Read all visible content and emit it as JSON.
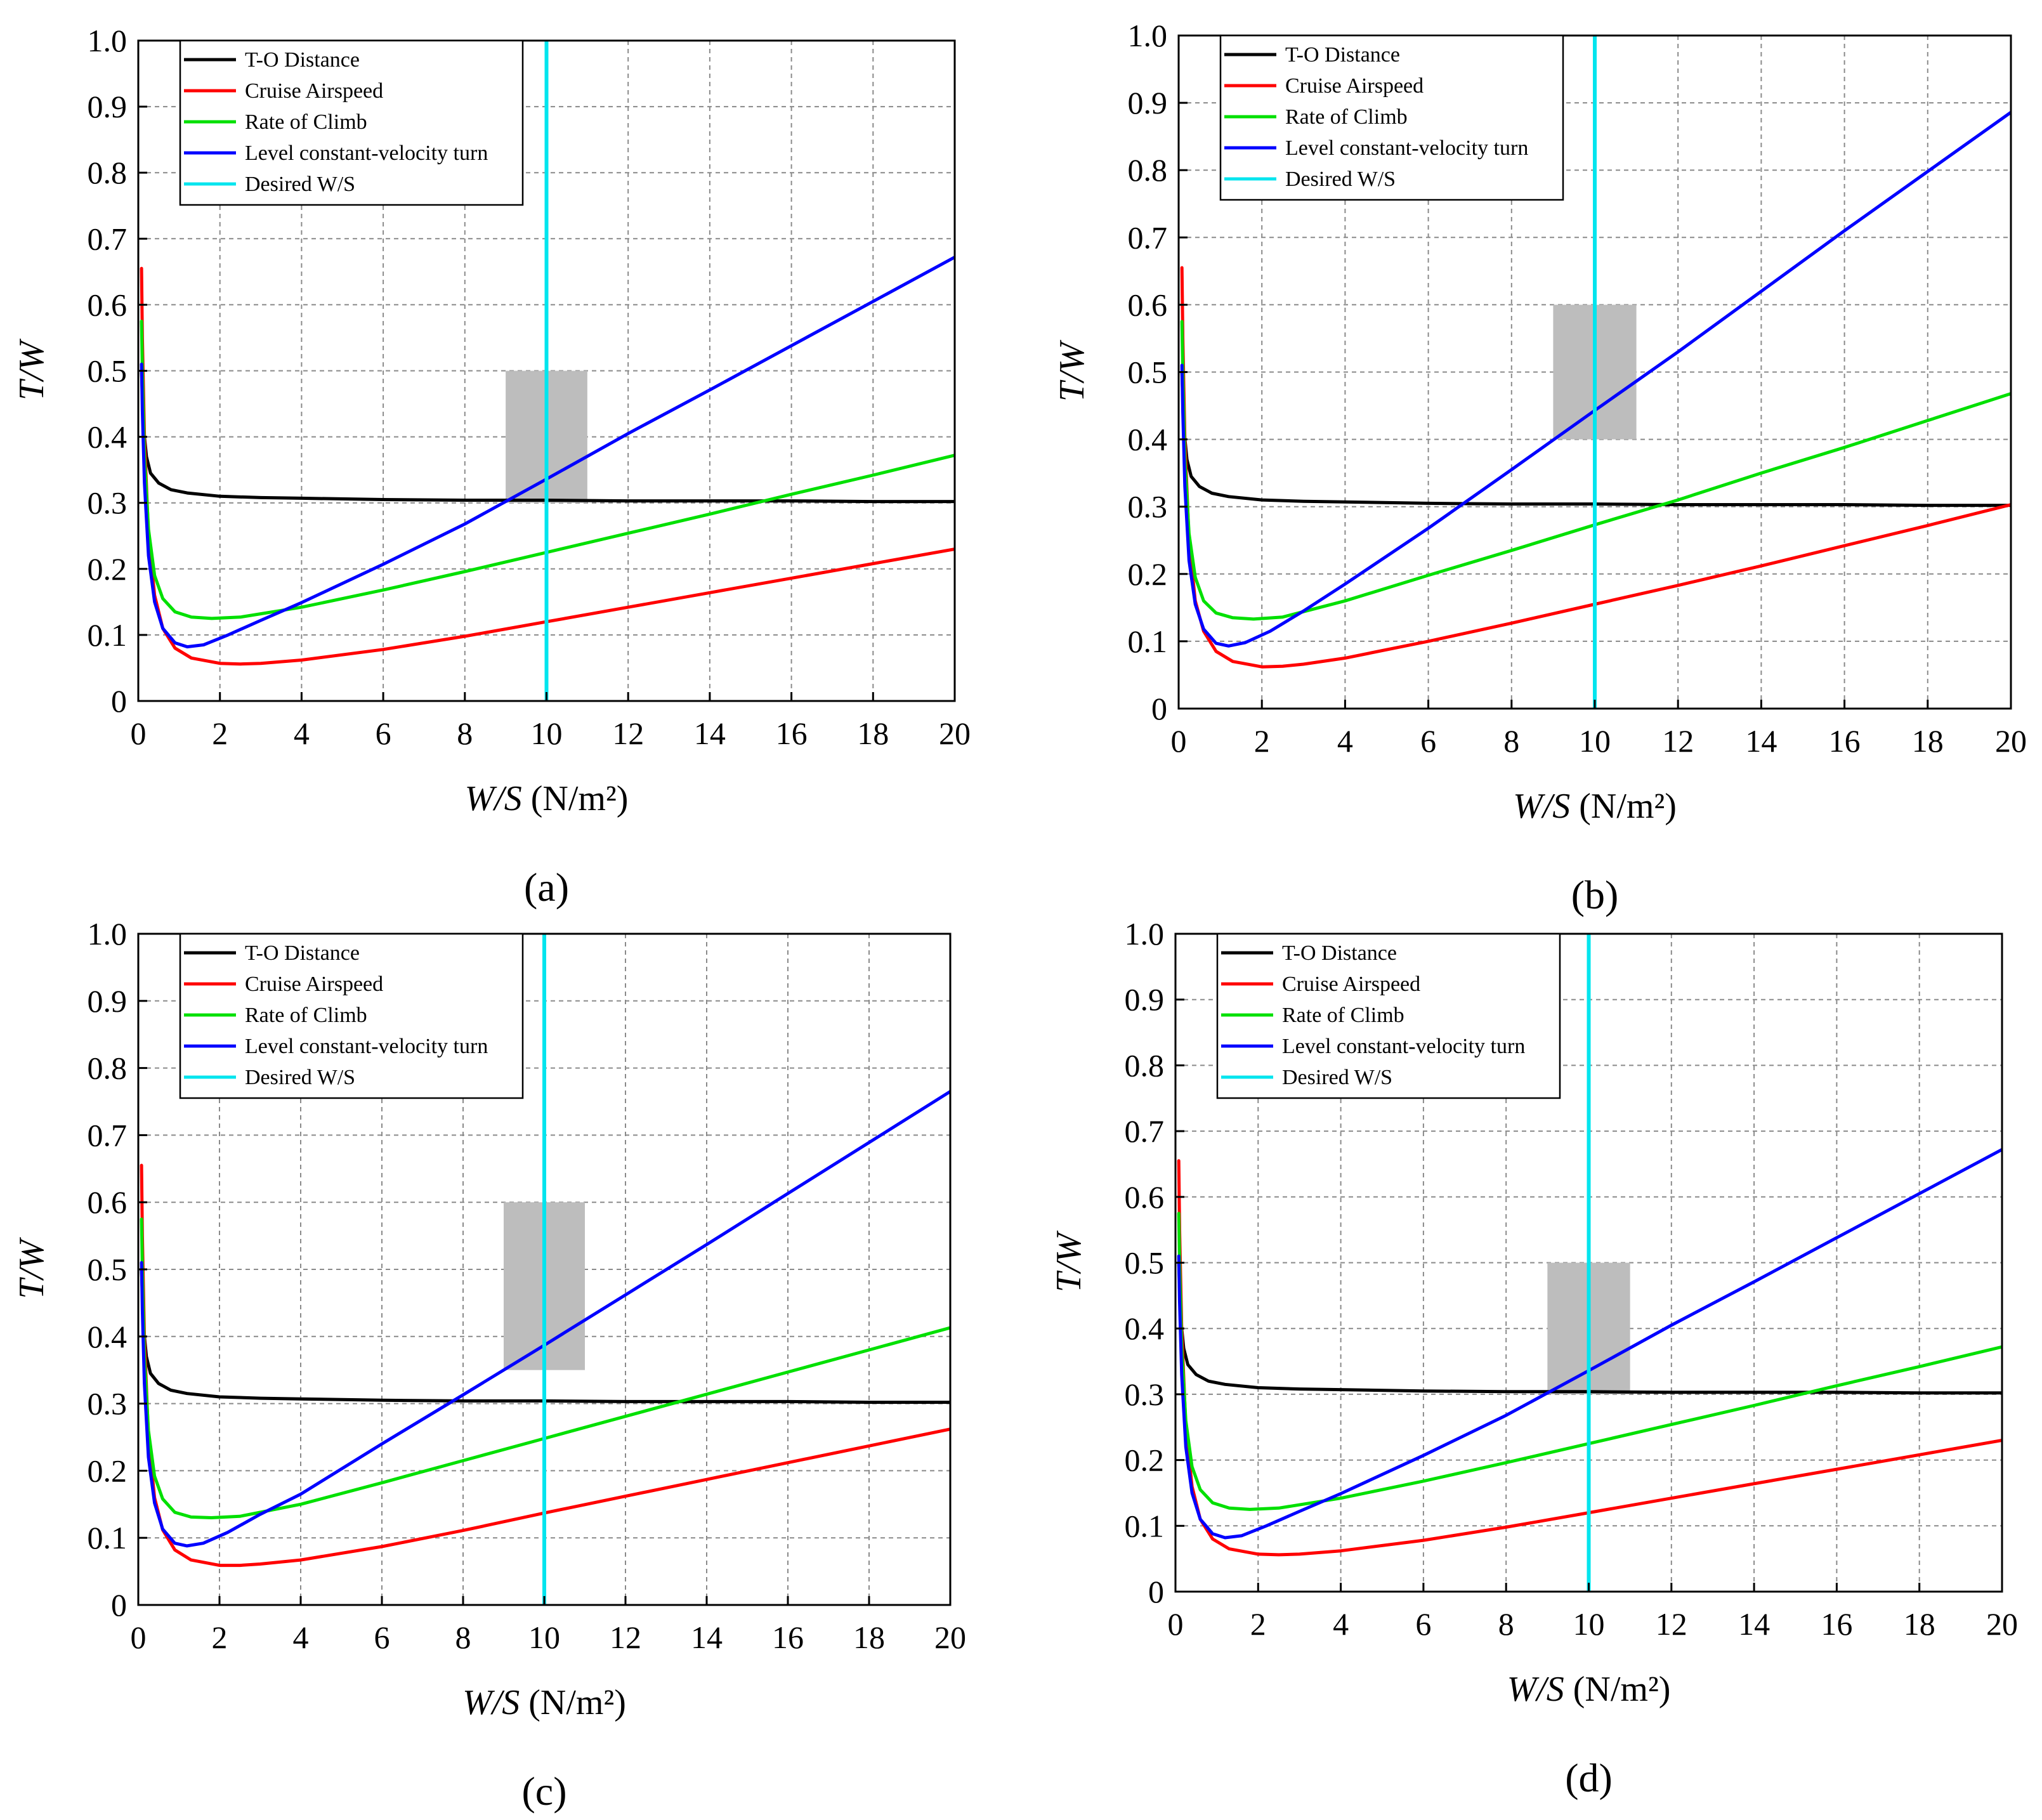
{
  "chart_data": [
    {
      "panel": "a",
      "type": "line",
      "caption": "(a)",
      "xlabel_italic": "W/S",
      "xlabel_units": " (N/m²)",
      "ylabel": "T/W",
      "xlim": [
        0,
        20
      ],
      "ylim": [
        0,
        1.0
      ],
      "x_ticks": [
        "0",
        "2",
        "4",
        "6",
        "8",
        "10",
        "12",
        "14",
        "16",
        "18",
        "20"
      ],
      "y_ticks": [
        "0",
        "0.1",
        "0.2",
        "0.3",
        "0.4",
        "0.5",
        "0.6",
        "0.7",
        "0.8",
        "0.9",
        "1.0"
      ],
      "grid": true,
      "legend_position": "top-left",
      "feasible_region": {
        "x": [
          9,
          11
        ],
        "y": [
          0.3,
          0.5
        ],
        "color": "#bdbdbd"
      },
      "desired_ws": 10,
      "series": [
        {
          "name": "T-O Distance",
          "color": "#000000",
          "x": [
            0.08,
            0.12,
            0.2,
            0.3,
            0.5,
            0.8,
            1.2,
            2,
            3,
            4,
            6,
            8,
            10,
            12,
            14,
            16,
            18,
            20
          ],
          "y": [
            0.5,
            0.42,
            0.37,
            0.345,
            0.33,
            0.32,
            0.315,
            0.31,
            0.308,
            0.307,
            0.305,
            0.304,
            0.304,
            0.303,
            0.303,
            0.303,
            0.302,
            0.302
          ]
        },
        {
          "name": "Cruise Airspeed",
          "color": "#ff0000",
          "x": [
            0.08,
            0.1,
            0.15,
            0.25,
            0.4,
            0.6,
            0.9,
            1.3,
            2,
            2.5,
            3,
            4,
            6,
            8,
            10,
            12,
            14,
            16,
            18,
            20
          ],
          "y": [
            0.655,
            0.55,
            0.4,
            0.25,
            0.16,
            0.11,
            0.08,
            0.065,
            0.057,
            0.056,
            0.057,
            0.062,
            0.078,
            0.098,
            0.12,
            0.142,
            0.164,
            0.186,
            0.208,
            0.23
          ]
        },
        {
          "name": "Rate of Climb",
          "color": "#00e000",
          "x": [
            0.08,
            0.1,
            0.15,
            0.25,
            0.4,
            0.6,
            0.9,
            1.3,
            1.8,
            2.5,
            4,
            6,
            8,
            10,
            12,
            14,
            16,
            18,
            20
          ],
          "y": [
            0.575,
            0.5,
            0.37,
            0.26,
            0.19,
            0.155,
            0.135,
            0.127,
            0.125,
            0.127,
            0.142,
            0.168,
            0.196,
            0.225,
            0.254,
            0.283,
            0.313,
            0.342,
            0.372
          ]
        },
        {
          "name": "Level constant-velocity turn",
          "color": "#0000ff",
          "x": [
            0.08,
            0.1,
            0.15,
            0.25,
            0.4,
            0.6,
            0.9,
            1.2,
            1.6,
            2.2,
            3,
            4,
            6,
            8,
            10,
            12,
            14,
            16,
            18,
            20
          ],
          "y": [
            0.51,
            0.44,
            0.33,
            0.22,
            0.15,
            0.11,
            0.088,
            0.082,
            0.085,
            0.1,
            0.122,
            0.149,
            0.207,
            0.268,
            0.336,
            0.405,
            0.471,
            0.538,
            0.605,
            0.672
          ]
        }
      ],
      "legend_desired_label": "Desired W/S",
      "desired_color": "#00e5ee"
    },
    {
      "panel": "b",
      "type": "line",
      "caption": "(b)",
      "xlabel_italic": "W/S",
      "xlabel_units": " (N/m²)",
      "ylabel": "T/W",
      "xlim": [
        0,
        20
      ],
      "ylim": [
        0,
        1.0
      ],
      "x_ticks": [
        "0",
        "2",
        "4",
        "6",
        "8",
        "10",
        "12",
        "14",
        "16",
        "18",
        "20"
      ],
      "y_ticks": [
        "0",
        "0.1",
        "0.2",
        "0.3",
        "0.4",
        "0.5",
        "0.6",
        "0.7",
        "0.8",
        "0.9",
        "1.0"
      ],
      "grid": true,
      "legend_position": "top-left",
      "feasible_region": {
        "x": [
          9,
          11
        ],
        "y": [
          0.4,
          0.6
        ],
        "color": "#bdbdbd"
      },
      "desired_ws": 10,
      "series": [
        {
          "name": "T-O Distance",
          "color": "#000000",
          "x": [
            0.08,
            0.12,
            0.2,
            0.3,
            0.5,
            0.8,
            1.2,
            2,
            3,
            4,
            6,
            8,
            10,
            12,
            14,
            16,
            18,
            20
          ],
          "y": [
            0.5,
            0.42,
            0.37,
            0.345,
            0.33,
            0.32,
            0.315,
            0.31,
            0.308,
            0.307,
            0.305,
            0.304,
            0.304,
            0.303,
            0.303,
            0.303,
            0.302,
            0.302
          ]
        },
        {
          "name": "Cruise Airspeed",
          "color": "#ff0000",
          "x": [
            0.08,
            0.1,
            0.15,
            0.25,
            0.4,
            0.6,
            0.9,
            1.3,
            2,
            2.5,
            3,
            4,
            6,
            8,
            10,
            12,
            14,
            16,
            18,
            20
          ],
          "y": [
            0.655,
            0.55,
            0.4,
            0.25,
            0.16,
            0.115,
            0.085,
            0.07,
            0.062,
            0.063,
            0.066,
            0.075,
            0.1,
            0.127,
            0.155,
            0.183,
            0.212,
            0.242,
            0.272,
            0.303
          ]
        },
        {
          "name": "Rate of Climb",
          "color": "#00e000",
          "x": [
            0.08,
            0.1,
            0.15,
            0.25,
            0.4,
            0.6,
            0.9,
            1.3,
            1.8,
            2.5,
            4,
            6,
            8,
            10,
            12,
            14,
            16,
            18,
            20
          ],
          "y": [
            0.575,
            0.5,
            0.37,
            0.26,
            0.195,
            0.16,
            0.142,
            0.135,
            0.133,
            0.136,
            0.16,
            0.198,
            0.235,
            0.273,
            0.31,
            0.35,
            0.388,
            0.428,
            0.468
          ]
        },
        {
          "name": "Level constant-velocity turn",
          "color": "#0000ff",
          "x": [
            0.08,
            0.1,
            0.15,
            0.25,
            0.4,
            0.6,
            0.9,
            1.2,
            1.6,
            2.2,
            3,
            4,
            6,
            8,
            10,
            12,
            14,
            16,
            18,
            20
          ],
          "y": [
            0.51,
            0.44,
            0.33,
            0.22,
            0.155,
            0.118,
            0.097,
            0.093,
            0.098,
            0.115,
            0.145,
            0.185,
            0.268,
            0.355,
            0.443,
            0.53,
            0.62,
            0.71,
            0.798,
            0.886
          ]
        }
      ],
      "legend_desired_label": "Desired W/S",
      "desired_color": "#00e5ee"
    },
    {
      "panel": "c",
      "type": "line",
      "caption": "(c)",
      "xlabel_italic": "W/S",
      "xlabel_units": " (N/m²)",
      "ylabel": "T/W",
      "xlim": [
        0,
        20
      ],
      "ylim": [
        0,
        1.0
      ],
      "x_ticks": [
        "0",
        "2",
        "4",
        "6",
        "8",
        "10",
        "12",
        "14",
        "16",
        "18",
        "20"
      ],
      "y_ticks": [
        "0",
        "0.1",
        "0.2",
        "0.3",
        "0.4",
        "0.5",
        "0.6",
        "0.7",
        "0.8",
        "0.9",
        "1.0"
      ],
      "grid": true,
      "legend_position": "top-left",
      "feasible_region": {
        "x": [
          9,
          11
        ],
        "y": [
          0.35,
          0.6
        ],
        "color": "#bdbdbd"
      },
      "desired_ws": 10,
      "series": [
        {
          "name": "T-O Distance",
          "color": "#000000",
          "x": [
            0.08,
            0.12,
            0.2,
            0.3,
            0.5,
            0.8,
            1.2,
            2,
            3,
            4,
            6,
            8,
            10,
            12,
            14,
            16,
            18,
            20
          ],
          "y": [
            0.5,
            0.42,
            0.37,
            0.345,
            0.33,
            0.32,
            0.315,
            0.31,
            0.308,
            0.307,
            0.305,
            0.304,
            0.304,
            0.303,
            0.303,
            0.303,
            0.302,
            0.302
          ]
        },
        {
          "name": "Cruise Airspeed",
          "color": "#ff0000",
          "x": [
            0.08,
            0.1,
            0.15,
            0.25,
            0.4,
            0.6,
            0.9,
            1.3,
            2,
            2.5,
            3,
            4,
            6,
            8,
            10,
            12,
            14,
            16,
            18,
            20
          ],
          "y": [
            0.655,
            0.55,
            0.4,
            0.25,
            0.16,
            0.112,
            0.082,
            0.067,
            0.059,
            0.059,
            0.061,
            0.067,
            0.087,
            0.111,
            0.137,
            0.162,
            0.187,
            0.212,
            0.237,
            0.262
          ]
        },
        {
          "name": "Rate of Climb",
          "color": "#00e000",
          "x": [
            0.08,
            0.1,
            0.15,
            0.25,
            0.4,
            0.6,
            0.9,
            1.3,
            1.8,
            2.5,
            4,
            6,
            8,
            10,
            12,
            14,
            16,
            18,
            20
          ],
          "y": [
            0.575,
            0.5,
            0.37,
            0.26,
            0.192,
            0.158,
            0.138,
            0.131,
            0.13,
            0.132,
            0.15,
            0.182,
            0.215,
            0.248,
            0.281,
            0.314,
            0.347,
            0.38,
            0.413
          ]
        },
        {
          "name": "Level constant-velocity turn",
          "color": "#0000ff",
          "x": [
            0.08,
            0.1,
            0.15,
            0.25,
            0.4,
            0.6,
            0.9,
            1.2,
            1.6,
            2.2,
            3,
            4,
            6,
            8,
            10,
            12,
            14,
            16,
            18,
            20
          ],
          "y": [
            0.51,
            0.44,
            0.33,
            0.22,
            0.152,
            0.113,
            0.092,
            0.088,
            0.092,
            0.108,
            0.135,
            0.165,
            0.24,
            0.313,
            0.387,
            0.462,
            0.537,
            0.613,
            0.689,
            0.765
          ]
        }
      ],
      "legend_desired_label": "Desired W/S",
      "desired_color": "#00e5ee"
    },
    {
      "panel": "d",
      "type": "line",
      "caption": "(d)",
      "xlabel_italic": "W/S",
      "xlabel_units": " (N/m²)",
      "ylabel": "T/W",
      "xlim": [
        0,
        20
      ],
      "ylim": [
        0,
        1.0
      ],
      "x_ticks": [
        "0",
        "2",
        "4",
        "6",
        "8",
        "10",
        "12",
        "14",
        "16",
        "18",
        "20"
      ],
      "y_ticks": [
        "0",
        "0.1",
        "0.2",
        "0.3",
        "0.4",
        "0.5",
        "0.6",
        "0.7",
        "0.8",
        "0.9",
        "1.0"
      ],
      "grid": true,
      "legend_position": "top-left",
      "feasible_region": {
        "x": [
          9,
          11
        ],
        "y": [
          0.3,
          0.5
        ],
        "color": "#bdbdbd"
      },
      "desired_ws": 10,
      "series": [
        {
          "name": "T-O Distance",
          "color": "#000000",
          "x": [
            0.08,
            0.12,
            0.2,
            0.3,
            0.5,
            0.8,
            1.2,
            2,
            3,
            4,
            6,
            8,
            10,
            12,
            14,
            16,
            18,
            20
          ],
          "y": [
            0.5,
            0.42,
            0.37,
            0.345,
            0.33,
            0.32,
            0.315,
            0.31,
            0.308,
            0.307,
            0.305,
            0.304,
            0.304,
            0.303,
            0.303,
            0.303,
            0.302,
            0.302
          ]
        },
        {
          "name": "Cruise Airspeed",
          "color": "#ff0000",
          "x": [
            0.08,
            0.1,
            0.15,
            0.25,
            0.4,
            0.6,
            0.9,
            1.3,
            2,
            2.5,
            3,
            4,
            6,
            8,
            10,
            12,
            14,
            16,
            18,
            20
          ],
          "y": [
            0.655,
            0.55,
            0.4,
            0.25,
            0.16,
            0.11,
            0.08,
            0.065,
            0.057,
            0.056,
            0.057,
            0.062,
            0.078,
            0.098,
            0.12,
            0.142,
            0.164,
            0.186,
            0.208,
            0.23
          ]
        },
        {
          "name": "Rate of Climb",
          "color": "#00e000",
          "x": [
            0.08,
            0.1,
            0.15,
            0.25,
            0.4,
            0.6,
            0.9,
            1.3,
            1.8,
            2.5,
            4,
            6,
            8,
            10,
            12,
            14,
            16,
            18,
            20
          ],
          "y": [
            0.575,
            0.5,
            0.37,
            0.26,
            0.19,
            0.155,
            0.135,
            0.127,
            0.125,
            0.127,
            0.142,
            0.168,
            0.196,
            0.225,
            0.254,
            0.283,
            0.313,
            0.342,
            0.372
          ]
        },
        {
          "name": "Level constant-velocity turn",
          "color": "#0000ff",
          "x": [
            0.08,
            0.1,
            0.15,
            0.25,
            0.4,
            0.6,
            0.9,
            1.2,
            1.6,
            2.2,
            3,
            4,
            6,
            8,
            10,
            12,
            14,
            16,
            18,
            20
          ],
          "y": [
            0.51,
            0.44,
            0.33,
            0.22,
            0.15,
            0.11,
            0.088,
            0.082,
            0.085,
            0.1,
            0.122,
            0.149,
            0.207,
            0.268,
            0.336,
            0.405,
            0.471,
            0.538,
            0.605,
            0.672
          ]
        }
      ],
      "legend_desired_label": "Desired W/S",
      "desired_color": "#00e5ee"
    }
  ]
}
